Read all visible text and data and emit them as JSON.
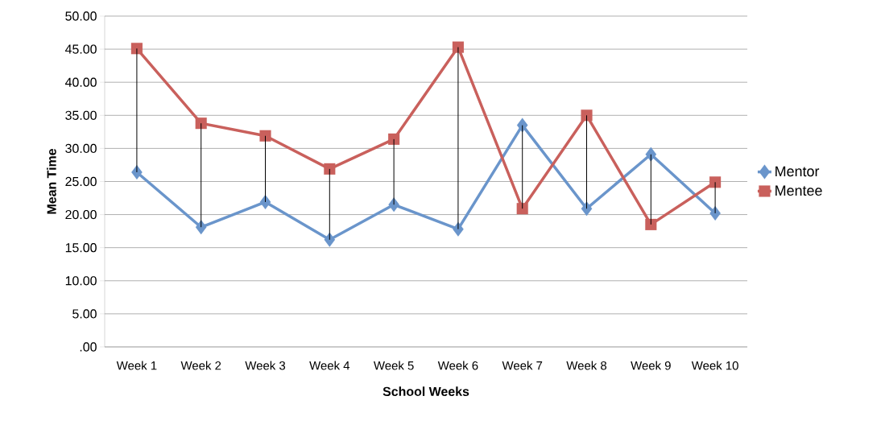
{
  "chart_data": {
    "type": "line",
    "xlabel": "School Weeks",
    "ylabel": "Mean Time",
    "categories": [
      "Week 1",
      "Week 2",
      "Week 3",
      "Week 4",
      "Week 5",
      "Week 6",
      "Week 7",
      "Week 8",
      "Week 9",
      "Week 10"
    ],
    "series": [
      {
        "name": "Mentor",
        "color": "#6a95cb",
        "marker": "diamond",
        "values": [
          26.4,
          18.1,
          21.9,
          16.2,
          21.5,
          17.8,
          33.5,
          20.9,
          29.1,
          20.2
        ]
      },
      {
        "name": "Mentee",
        "color": "#c9605c",
        "marker": "square",
        "values": [
          45.1,
          33.8,
          31.9,
          26.9,
          31.4,
          45.3,
          20.9,
          35.0,
          18.5,
          24.9
        ],
        "errors": [
          [
            26.4,
            45.1
          ],
          [
            18.1,
            33.8
          ],
          [
            21.9,
            31.9
          ],
          [
            16.2,
            26.9
          ],
          [
            21.5,
            31.4
          ],
          [
            17.8,
            45.3
          ],
          [
            20.9,
            33.5
          ],
          [
            20.9,
            35.0
          ],
          [
            18.5,
            29.1
          ],
          [
            20.2,
            24.9
          ]
        ]
      }
    ],
    "ylim": [
      0,
      50
    ],
    "yticks": [
      {
        "value": 0,
        "label": ".00"
      },
      {
        "value": 5,
        "label": "5.00"
      },
      {
        "value": 10,
        "label": "10.00"
      },
      {
        "value": 15,
        "label": "15.00"
      },
      {
        "value": 20,
        "label": "20.00"
      },
      {
        "value": 25,
        "label": "25.00"
      },
      {
        "value": 30,
        "label": "30.00"
      },
      {
        "value": 35,
        "label": "35.00"
      },
      {
        "value": 40,
        "label": "40.00"
      },
      {
        "value": 45,
        "label": "45.00"
      },
      {
        "value": 50,
        "label": "50.00"
      }
    ],
    "grid": "y",
    "legend": "right",
    "line_style": "solid"
  }
}
